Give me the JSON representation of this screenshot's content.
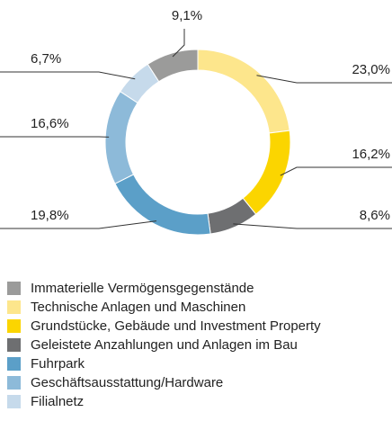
{
  "chart_data": {
    "type": "pie",
    "categories": [
      "Immaterielle Vermögensgegenstände",
      "Technische Anlagen und Maschinen",
      "Grundstücke, Gebäude und Investment Property",
      "Geleistete Anzahlungen und Anlagen im Bau",
      "Fuhrpark",
      "Geschäftsausstattung/Hardware",
      "Filialnetz"
    ],
    "values": [
      9.1,
      23.0,
      16.2,
      8.6,
      19.8,
      16.6,
      6.7
    ],
    "value_labels": [
      "9,1%",
      "23,0%",
      "16,2%",
      "8,6%",
      "19,8%",
      "16,6%",
      "6,7%"
    ],
    "colors": [
      "#9b9b9a",
      "#fde68c",
      "#fbd500",
      "#6e6f71",
      "#5b9fc8",
      "#8dbad9",
      "#c6daeb"
    ],
    "legend": "bottom"
  }
}
